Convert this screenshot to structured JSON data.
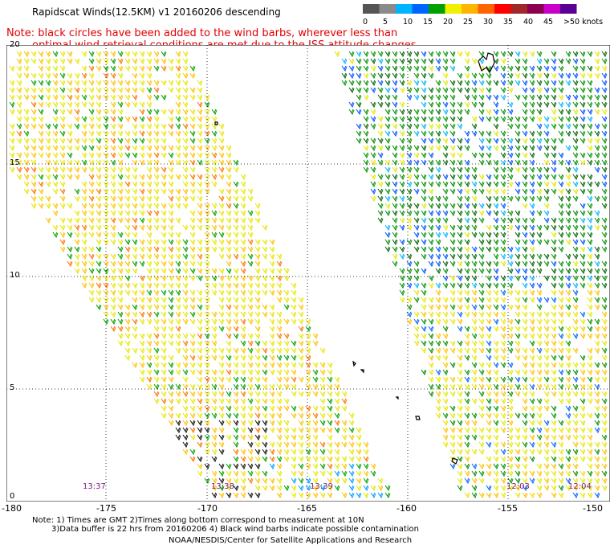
{
  "title": "Rapidscat Winds(12.5KM)  v1  20160206  descending",
  "note": {
    "line1": "Note: black circles have been added to the wind barbs, wherever less than",
    "line2": "optimal wind retrieval conditions are met due to the ISS attitude changes."
  },
  "colorbar": {
    "colors": [
      "#555555",
      "#8a8a8a",
      "#00b4ff",
      "#0064ff",
      "#00a000",
      "#f0f000",
      "#ffb400",
      "#ff6400",
      "#ff0000",
      "#a02828",
      "#8c0050",
      "#c800c8",
      "#5a0096"
    ],
    "labels": [
      "0",
      "5",
      "10",
      "15",
      "20",
      "25",
      "30",
      "35",
      "40",
      "45",
      ">50 knots"
    ]
  },
  "axes": {
    "lat_labels": [
      "20",
      "15",
      "10",
      "5",
      "0"
    ],
    "lon_labels": [
      "-180",
      "-175",
      "-170",
      "-165",
      "-160",
      "-155",
      "-150"
    ]
  },
  "swath_times": [
    "13:37",
    "13:38",
    "13:39",
    "12:03",
    "12:04"
  ],
  "footer": {
    "line1": "Note: 1) Times are GMT 2)Times along bottom correspond to measurement at 10N",
    "line2": "3)Data buffer is 22 hrs from 20160206 4) Black wind barbs indicate possible contamination",
    "line3": "NOAA/NESDIS/Center for Satellite Applications and Research"
  }
}
